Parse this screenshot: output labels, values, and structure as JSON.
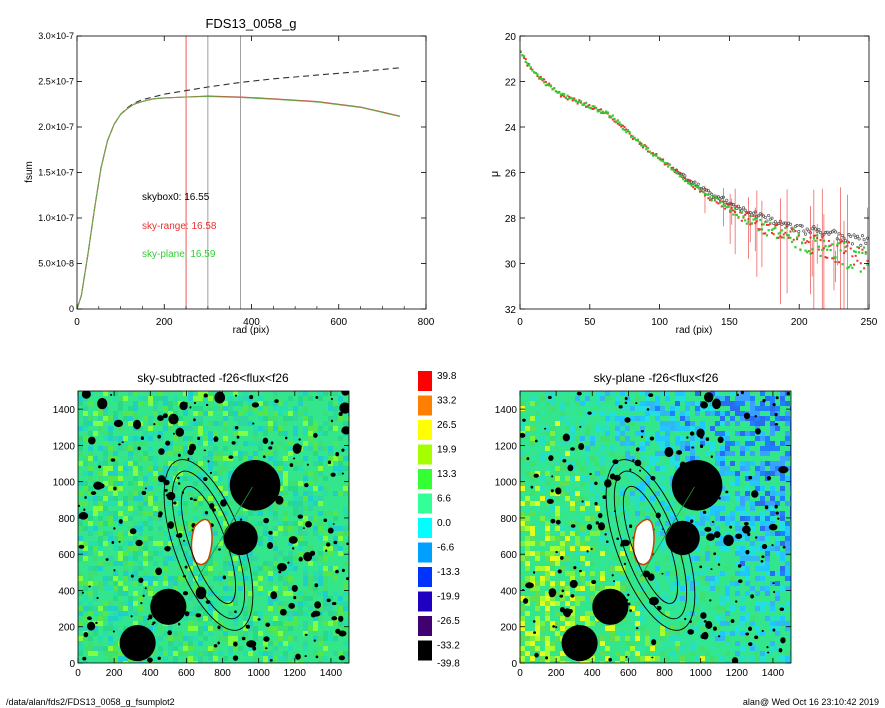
{
  "footer": {
    "left": "/data/alan/fds2/FDS13_0058_g_fsumplot2",
    "right": "alan@  Wed Oct 16 23:10:42 2019"
  },
  "chart_data": [
    {
      "type": "line",
      "title": "FDS13_0058_g",
      "xlabel": "rad (pix)",
      "ylabel": "fsum",
      "xlim": [
        0,
        800
      ],
      "ylim": [
        0,
        3e-07
      ],
      "xticks": [
        "0",
        "200",
        "400",
        "600",
        "800"
      ],
      "yticks": [
        "0",
        "5.0×10-8",
        "1.0×10-7",
        "1.5×10-7",
        "2.0×10-7",
        "2.5×10-7",
        "3.0×10-7"
      ],
      "vlines": [
        {
          "x": 250,
          "color": "#e8322f"
        },
        {
          "x": 300,
          "color": "#888888"
        },
        {
          "x": 375,
          "color": "#888888"
        }
      ],
      "annotations": [
        {
          "text": "skybox0: 16.55",
          "color": "#000000"
        },
        {
          "text": "sky-range: 16.58",
          "color": "#e8322f"
        },
        {
          "text": "sky-plane: 16.59",
          "color": "#33cc33"
        }
      ],
      "series": [
        {
          "style": "dashed",
          "color": "#333333",
          "x": [
            0,
            10,
            25,
            40,
            55,
            70,
            85,
            100,
            115,
            130,
            150,
            175,
            200,
            250,
            300,
            375,
            450,
            550,
            650,
            740
          ],
          "y": [
            0,
            1.5e-08,
            6e-08,
            1.1e-07,
            1.55e-07,
            1.85e-07,
            2.03e-07,
            2.14e-07,
            2.21e-07,
            2.26e-07,
            2.3e-07,
            2.33e-07,
            2.36e-07,
            2.4e-07,
            2.44e-07,
            2.49e-07,
            2.53e-07,
            2.57e-07,
            2.61e-07,
            2.65e-07
          ]
        },
        {
          "style": "solid",
          "color": "#e8322f",
          "x": [
            0,
            10,
            25,
            40,
            55,
            70,
            85,
            100,
            115,
            130,
            150,
            175,
            200,
            250,
            300,
            375,
            450,
            550,
            650,
            740
          ],
          "y": [
            0,
            1.5e-08,
            6e-08,
            1.1e-07,
            1.55e-07,
            1.85e-07,
            2.03e-07,
            2.14e-07,
            2.2e-07,
            2.25e-07,
            2.28e-07,
            2.31e-07,
            2.32e-07,
            2.33e-07,
            2.34e-07,
            2.33e-07,
            2.31e-07,
            2.28e-07,
            2.22e-07,
            2.12e-07
          ]
        },
        {
          "style": "solid",
          "color": "#6aa84f",
          "x": [
            0,
            10,
            25,
            40,
            55,
            70,
            85,
            100,
            115,
            130,
            150,
            175,
            200,
            250,
            300,
            375,
            450,
            550,
            650,
            740
          ],
          "y": [
            0,
            1.5e-08,
            6e-08,
            1.1e-07,
            1.55e-07,
            1.85e-07,
            2.03e-07,
            2.14e-07,
            2.2e-07,
            2.25e-07,
            2.28e-07,
            2.31e-07,
            2.32e-07,
            2.33e-07,
            2.335e-07,
            2.325e-07,
            2.305e-07,
            2.275e-07,
            2.215e-07,
            2.115e-07
          ]
        }
      ]
    },
    {
      "type": "scatter",
      "title": "",
      "xlabel": "rad (pix)",
      "ylabel": "μ",
      "xlim": [
        0,
        250
      ],
      "ylim": [
        32,
        20
      ],
      "xticks": [
        "0",
        "50",
        "100",
        "150",
        "200",
        "250"
      ],
      "yticks": [
        "20",
        "22",
        "24",
        "26",
        "28",
        "30",
        "32"
      ],
      "profile_knots": {
        "x": [
          0,
          5,
          15,
          30,
          50,
          65,
          70,
          80,
          100,
          120,
          140,
          160,
          180,
          200,
          220,
          250
        ],
        "y": [
          20.6,
          21.2,
          21.9,
          22.6,
          23.1,
          23.5,
          23.8,
          24.4,
          25.4,
          26.3,
          27.1,
          27.7,
          28.2,
          28.6,
          28.9,
          29.3
        ]
      },
      "series": [
        {
          "name": "skybox0",
          "color": "#555555"
        },
        {
          "name": "sky-range",
          "color": "#e8322f"
        },
        {
          "name": "sky-plane",
          "color": "#33cc33"
        }
      ]
    },
    {
      "type": "heatmap",
      "title": "sky-subtracted -f26<flux<f26",
      "xlim": [
        0,
        1500
      ],
      "ylim": [
        0,
        1500
      ],
      "xticks": [
        "0",
        "200",
        "400",
        "600",
        "800",
        "1000",
        "1200",
        "1400"
      ],
      "yticks": [
        "0",
        "200",
        "400",
        "600",
        "800",
        "1000",
        "1200",
        "1400"
      ],
      "masks": [
        {
          "x": 980,
          "y": 980,
          "r": 140
        },
        {
          "x": 900,
          "y": 690,
          "r": 95
        },
        {
          "x": 500,
          "y": 310,
          "r": 100
        },
        {
          "x": 330,
          "y": 110,
          "r": 100
        }
      ],
      "galaxy": {
        "x": 700,
        "y": 640
      }
    },
    {
      "type": "heatmap",
      "title": "sky-plane -f26<flux<f26",
      "xlim": [
        0,
        1500
      ],
      "ylim": [
        0,
        1500
      ],
      "xticks": [
        "0",
        "200",
        "400",
        "600",
        "800",
        "1000",
        "1200",
        "1400"
      ],
      "yticks": [
        "0",
        "200",
        "400",
        "600",
        "800",
        "1000",
        "1200",
        "1400"
      ],
      "masks": [
        {
          "x": 980,
          "y": 980,
          "r": 140
        },
        {
          "x": 900,
          "y": 690,
          "r": 95
        },
        {
          "x": 500,
          "y": 310,
          "r": 100
        },
        {
          "x": 330,
          "y": 110,
          "r": 100
        }
      ],
      "galaxy": {
        "x": 700,
        "y": 640
      }
    }
  ],
  "colorbar": {
    "labels": [
      "39.8",
      "33.2",
      "26.5",
      "19.9",
      "13.3",
      "6.6",
      "0.0",
      "-6.6",
      "-13.3",
      "-19.9",
      "-26.5",
      "-33.2",
      "-39.8"
    ],
    "colors": [
      "#ff0000",
      "#ff8000",
      "#ffff00",
      "#a6ff00",
      "#33ff33",
      "#33ff99",
      "#00ffff",
      "#00a0ff",
      "#0033ff",
      "#2000c0",
      "#400070",
      "#000000"
    ]
  }
}
